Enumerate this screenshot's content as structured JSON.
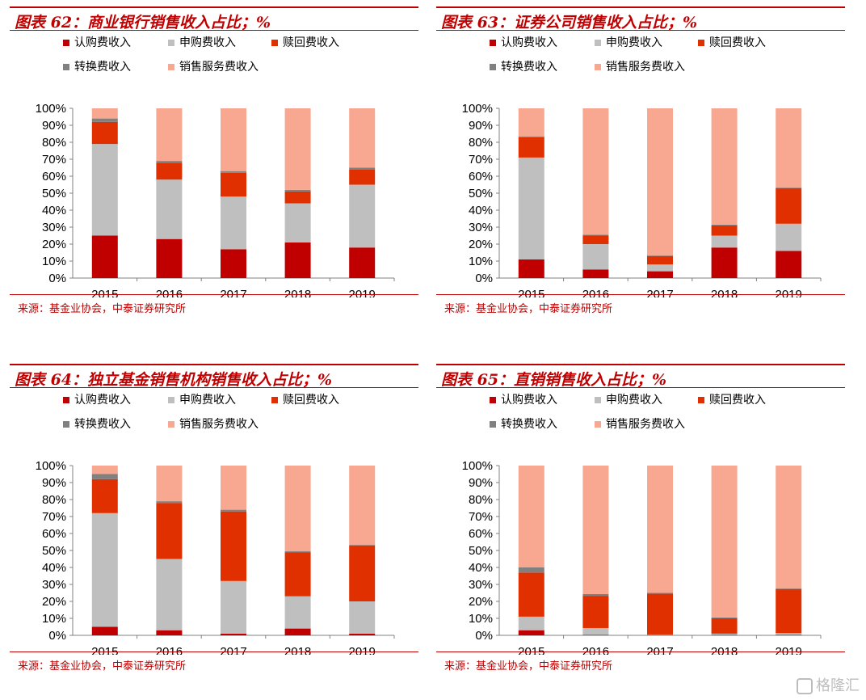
{
  "legend": [
    {
      "label": "认购费收入",
      "color": "#c00000"
    },
    {
      "label": "申购费收入",
      "color": "#bfbfbf"
    },
    {
      "label": "赎回费收入",
      "color": "#e03000"
    },
    {
      "label": "转换费收入",
      "color": "#808080"
    },
    {
      "label": "销售服务费收入",
      "color": "#f8a890"
    }
  ],
  "watermark": "格隆汇",
  "chart_data": [
    {
      "type": "bar",
      "stacked": true,
      "title": "图表 62：商业银行销售收入占比；%",
      "source": "来源：基金业协会，中泰证券研究所",
      "categories": [
        "2015",
        "2016",
        "2017",
        "2018",
        "2019"
      ],
      "ylim": [
        0,
        100
      ],
      "yticks": [
        "0%",
        "10%",
        "20%",
        "30%",
        "40%",
        "50%",
        "60%",
        "70%",
        "80%",
        "90%",
        "100%"
      ],
      "series": [
        {
          "name": "认购费收入",
          "values": [
            25,
            23,
            17,
            21,
            18
          ]
        },
        {
          "name": "申购费收入",
          "values": [
            54,
            35,
            31,
            23,
            37
          ]
        },
        {
          "name": "赎回费收入",
          "values": [
            13,
            10,
            14,
            7,
            9
          ]
        },
        {
          "name": "转换费收入",
          "values": [
            2,
            1,
            1,
            1,
            1
          ]
        },
        {
          "name": "销售服务费收入",
          "values": [
            6,
            31,
            37,
            48,
            35
          ]
        }
      ]
    },
    {
      "type": "bar",
      "stacked": true,
      "title": "图表 63：证券公司销售收入占比；%",
      "source": "来源：基金业协会，中泰证券研究所",
      "categories": [
        "2015",
        "2016",
        "2017",
        "2018",
        "2019"
      ],
      "ylim": [
        0,
        100
      ],
      "yticks": [
        "0%",
        "10%",
        "20%",
        "30%",
        "40%",
        "50%",
        "60%",
        "70%",
        "80%",
        "90%",
        "100%"
      ],
      "series": [
        {
          "name": "认购费收入",
          "values": [
            11,
            5,
            4,
            18,
            16
          ]
        },
        {
          "name": "申购费收入",
          "values": [
            60,
            15,
            4,
            7,
            16
          ]
        },
        {
          "name": "赎回费收入",
          "values": [
            12,
            5,
            5,
            6,
            21
          ]
        },
        {
          "name": "转换费收入",
          "values": [
            0.5,
            0.5,
            0.3,
            0.5,
            0.3
          ]
        },
        {
          "name": "销售服务费收入",
          "values": [
            16.5,
            74.5,
            86.7,
            68.5,
            46.7
          ]
        }
      ]
    },
    {
      "type": "bar",
      "stacked": true,
      "title": "图表 64：独立基金销售机构销售收入占比；%",
      "source": "来源：基金业协会，中泰证券研究所",
      "categories": [
        "2015",
        "2016",
        "2017",
        "2018",
        "2019"
      ],
      "ylim": [
        0,
        100
      ],
      "yticks": [
        "0%",
        "10%",
        "20%",
        "30%",
        "40%",
        "50%",
        "60%",
        "70%",
        "80%",
        "90%",
        "100%"
      ],
      "series": [
        {
          "name": "认购费收入",
          "values": [
            5,
            3,
            1,
            4,
            1
          ]
        },
        {
          "name": "申购费收入",
          "values": [
            67,
            42,
            31,
            19,
            19
          ]
        },
        {
          "name": "赎回费收入",
          "values": [
            20,
            33,
            41,
            26,
            33
          ]
        },
        {
          "name": "转换费收入",
          "values": [
            3,
            1,
            1,
            0.5,
            0.3
          ]
        },
        {
          "name": "销售服务费收入",
          "values": [
            5,
            21,
            26,
            50.5,
            46.7
          ]
        }
      ]
    },
    {
      "type": "bar",
      "stacked": true,
      "title": "图表 65：直销销售收入占比；%",
      "source": "来源：基金业协会，中泰证券研究所",
      "categories": [
        "2015",
        "2016",
        "2017",
        "2018",
        "2019"
      ],
      "ylim": [
        0,
        100
      ],
      "yticks": [
        "0%",
        "10%",
        "20%",
        "30%",
        "40%",
        "50%",
        "60%",
        "70%",
        "80%",
        "90%",
        "100%"
      ],
      "series": [
        {
          "name": "认购费收入",
          "values": [
            3,
            0.3,
            0.2,
            0.3,
            0.3
          ]
        },
        {
          "name": "申购费收入",
          "values": [
            8,
            4,
            0.3,
            0.7,
            1
          ]
        },
        {
          "name": "赎回费收入",
          "values": [
            26,
            19,
            24,
            9,
            26
          ]
        },
        {
          "name": "转换费收入",
          "values": [
            3,
            1,
            0.5,
            0.5,
            0.3
          ]
        },
        {
          "name": "销售服务费收入",
          "values": [
            60,
            75.7,
            75,
            89.5,
            72.4
          ]
        }
      ]
    }
  ]
}
